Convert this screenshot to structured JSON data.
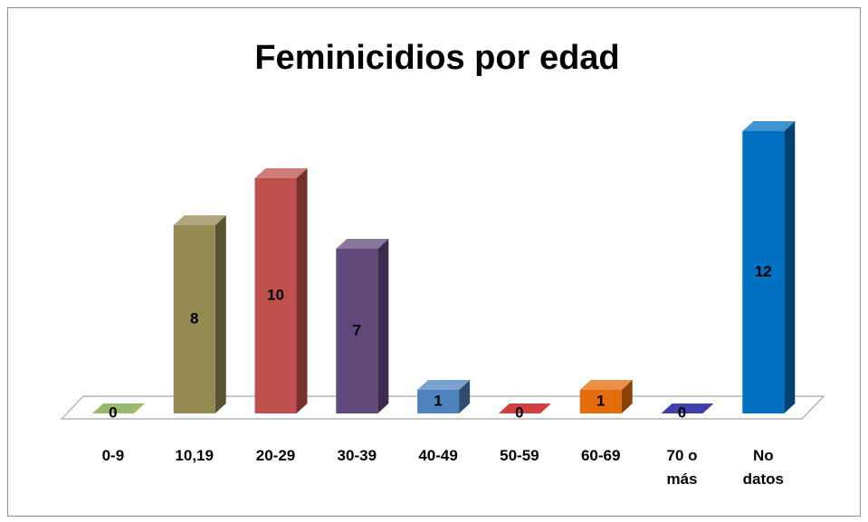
{
  "chart_data": {
    "type": "bar3d",
    "title": "Feminicidios por edad",
    "categories": [
      "0-9",
      "10,19",
      "20-29",
      "30-39",
      "40-49",
      "50-59",
      "60-69",
      "70 o más",
      "No datos"
    ],
    "values": [
      0,
      8,
      10,
      7,
      1,
      0,
      1,
      0,
      12
    ],
    "colors": [
      "#77a33a",
      "#948a54",
      "#c0504d",
      "#604a7b",
      "#4f81bd",
      "#c00000",
      "#e46c0a",
      "#00008b",
      "#0070c0"
    ]
  }
}
